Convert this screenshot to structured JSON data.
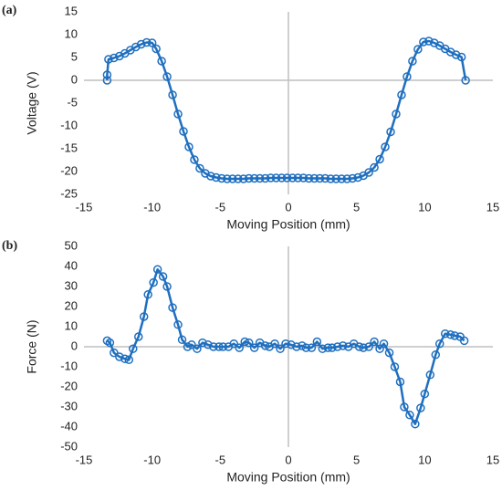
{
  "chart_data": [
    {
      "type": "line",
      "label": "(a)",
      "x_label": "Moving Position (mm)",
      "y_label": "Voltage (V)",
      "color": "#1f6fbf",
      "xlim": [
        -15,
        15
      ],
      "xticks": [
        -15,
        -10,
        -5,
        0,
        5,
        10,
        15
      ],
      "ylim": [
        -25,
        15
      ],
      "yticks": [
        -25,
        -20,
        -15,
        -10,
        -5,
        0,
        5,
        10,
        15
      ],
      "x": [
        -13.3,
        -13.3,
        -13.2,
        -12.8,
        -12.4,
        -12.0,
        -11.6,
        -11.2,
        -10.8,
        -10.4,
        -10.0,
        -9.7,
        -9.3,
        -8.9,
        -8.5,
        -8.1,
        -7.7,
        -7.3,
        -6.9,
        -6.5,
        -6.1,
        -5.7,
        -5.3,
        -4.9,
        -4.5,
        -4.1,
        -3.7,
        -3.3,
        -2.9,
        -2.5,
        -2.1,
        -1.7,
        -1.3,
        -0.9,
        -0.5,
        -0.1,
        0.3,
        0.7,
        1.1,
        1.5,
        1.9,
        2.3,
        2.7,
        3.1,
        3.5,
        3.9,
        4.3,
        4.7,
        5.1,
        5.5,
        5.9,
        6.3,
        6.7,
        7.1,
        7.5,
        7.9,
        8.3,
        8.7,
        9.1,
        9.5,
        9.9,
        10.3,
        10.7,
        11.1,
        11.5,
        11.9,
        12.3,
        12.7,
        13.0
      ],
      "values": [
        0,
        1.2,
        4.6,
        4.9,
        5.3,
        5.9,
        6.6,
        7.3,
        7.9,
        8.3,
        8.2,
        6.9,
        4.2,
        0.8,
        -3.2,
        -7.4,
        -11.2,
        -14.6,
        -17.4,
        -19.3,
        -20.4,
        -21.0,
        -21.3,
        -21.5,
        -21.6,
        -21.6,
        -21.6,
        -21.6,
        -21.5,
        -21.5,
        -21.5,
        -21.5,
        -21.4,
        -21.4,
        -21.4,
        -21.4,
        -21.4,
        -21.4,
        -21.4,
        -21.5,
        -21.5,
        -21.5,
        -21.5,
        -21.6,
        -21.6,
        -21.6,
        -21.6,
        -21.5,
        -21.3,
        -20.9,
        -20.2,
        -19.1,
        -17.3,
        -14.6,
        -11.3,
        -7.4,
        -3.2,
        0.8,
        4.2,
        6.8,
        8.4,
        8.6,
        8.2,
        7.6,
        6.9,
        6.2,
        5.6,
        5.1,
        0
      ]
    },
    {
      "type": "line",
      "label": "(b)",
      "x_label": "Moving Position (mm)",
      "y_label": "Force (N)",
      "color": "#1f6fbf",
      "xlim": [
        -15,
        15
      ],
      "xticks": [
        -15,
        -10,
        -5,
        0,
        5,
        10,
        15
      ],
      "ylim": [
        -50,
        50
      ],
      "yticks": [
        -50,
        -40,
        -30,
        -20,
        -10,
        0,
        10,
        20,
        30,
        40,
        50
      ],
      "x": [
        -13.3,
        -13.1,
        -12.8,
        -12.4,
        -12.0,
        -11.7,
        -11.4,
        -11.0,
        -10.6,
        -10.3,
        -9.9,
        -9.6,
        -9.2,
        -8.9,
        -8.5,
        -8.1,
        -7.8,
        -7.4,
        -7.1,
        -6.7,
        -6.3,
        -5.9,
        -5.5,
        -5.1,
        -4.8,
        -4.4,
        -4.0,
        -3.6,
        -3.2,
        -2.9,
        -2.5,
        -2.1,
        -1.7,
        -1.4,
        -1.0,
        -0.6,
        -0.2,
        0.2,
        0.6,
        1.0,
        1.3,
        1.7,
        2.1,
        2.5,
        2.9,
        3.2,
        3.6,
        4.0,
        4.4,
        4.8,
        5.2,
        5.5,
        5.9,
        6.3,
        6.7,
        7.0,
        7.4,
        7.8,
        8.2,
        8.5,
        8.9,
        9.3,
        9.7,
        10.0,
        10.4,
        10.8,
        11.1,
        11.5,
        11.9,
        12.2,
        12.6,
        12.9
      ],
      "values": [
        3,
        2,
        -3,
        -5,
        -6,
        -6.5,
        -1,
        5,
        15,
        26,
        32,
        38.5,
        35,
        30,
        19.5,
        11,
        3.5,
        0,
        1,
        -1,
        2,
        1,
        0,
        0,
        0,
        0,
        1.5,
        -0.5,
        2.5,
        2,
        -0.5,
        2,
        0.5,
        0,
        1.5,
        -1,
        1.5,
        1,
        0,
        0.5,
        -0.5,
        -0.5,
        2.5,
        -1,
        -0.5,
        -0.5,
        0,
        0.5,
        0,
        1.5,
        0,
        -0.5,
        0,
        2.5,
        -1,
        1.5,
        -3,
        -10,
        -17.5,
        -30,
        -34,
        -38.5,
        -30.5,
        -23.5,
        -14,
        -4,
        1.5,
        6.5,
        6,
        5.5,
        5,
        3
      ]
    }
  ]
}
